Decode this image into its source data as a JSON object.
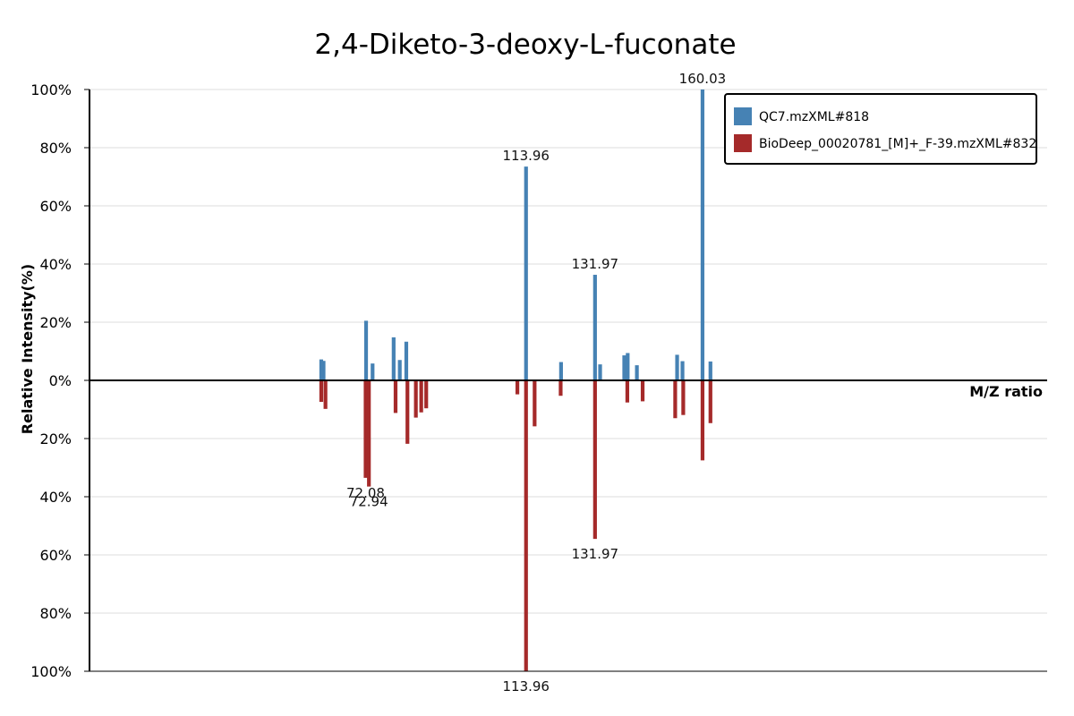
{
  "chart_data": {
    "type": "bar",
    "title": "2,4-Diketo-3-deoxy-L-fuconate",
    "xlabel": "M/Z ratio",
    "ylabel": "Relative Intensity(%)",
    "ylim": [
      -100,
      100
    ],
    "yticks": [
      "100%",
      "80%",
      "60%",
      "40%",
      "20%",
      "0%",
      "20%",
      "40%",
      "60%",
      "80%",
      "100%"
    ],
    "grid": true,
    "legend_position": "top-right",
    "colors": {
      "query": "#4682b4",
      "reference": "#a52a2a"
    },
    "series": [
      {
        "name": "QC7.mzXML#818",
        "direction": "up",
        "points": [
          {
            "mz": 60.5,
            "i": 7.2
          },
          {
            "mz": 61.1,
            "i": 6.7
          },
          {
            "mz": 72.2,
            "i": 20.5
          },
          {
            "mz": 73.9,
            "i": 5.8
          },
          {
            "mz": 79.4,
            "i": 14.8
          },
          {
            "mz": 81.0,
            "i": 7.0
          },
          {
            "mz": 82.7,
            "i": 13.3
          },
          {
            "mz": 113.96,
            "i": 73.5,
            "label": "113.96"
          },
          {
            "mz": 123.1,
            "i": 6.3
          },
          {
            "mz": 131.97,
            "i": 36.3,
            "label": "131.97"
          },
          {
            "mz": 133.3,
            "i": 5.5
          },
          {
            "mz": 139.6,
            "i": 8.6
          },
          {
            "mz": 140.5,
            "i": 9.4
          },
          {
            "mz": 142.9,
            "i": 5.2
          },
          {
            "mz": 153.4,
            "i": 8.8
          },
          {
            "mz": 154.8,
            "i": 6.6
          },
          {
            "mz": 160.03,
            "i": 100,
            "label": "160.03"
          },
          {
            "mz": 162.1,
            "i": 6.5
          }
        ]
      },
      {
        "name": "BioDeep_00020781_[M]+_F-39.mzXML#832",
        "direction": "down",
        "points": [
          {
            "mz": 60.5,
            "i": 7.4
          },
          {
            "mz": 61.6,
            "i": 9.8
          },
          {
            "mz": 72.08,
            "i": 33.5,
            "label": "72.08"
          },
          {
            "mz": 72.94,
            "i": 36.5,
            "label": "72.94"
          },
          {
            "mz": 79.9,
            "i": 11.2
          },
          {
            "mz": 83.0,
            "i": 21.8
          },
          {
            "mz": 85.2,
            "i": 12.8
          },
          {
            "mz": 86.6,
            "i": 11.0
          },
          {
            "mz": 87.9,
            "i": 9.6
          },
          {
            "mz": 111.7,
            "i": 4.8
          },
          {
            "mz": 113.96,
            "i": 100,
            "label": "113.96"
          },
          {
            "mz": 116.2,
            "i": 15.8
          },
          {
            "mz": 123.0,
            "i": 5.3
          },
          {
            "mz": 131.97,
            "i": 54.5,
            "label": "131.97"
          },
          {
            "mz": 140.4,
            "i": 7.6
          },
          {
            "mz": 144.4,
            "i": 7.2
          },
          {
            "mz": 152.9,
            "i": 13.0
          },
          {
            "mz": 155.0,
            "i": 11.9
          },
          {
            "mz": 160.03,
            "i": 27.5
          },
          {
            "mz": 162.1,
            "i": 14.7
          }
        ]
      }
    ]
  }
}
